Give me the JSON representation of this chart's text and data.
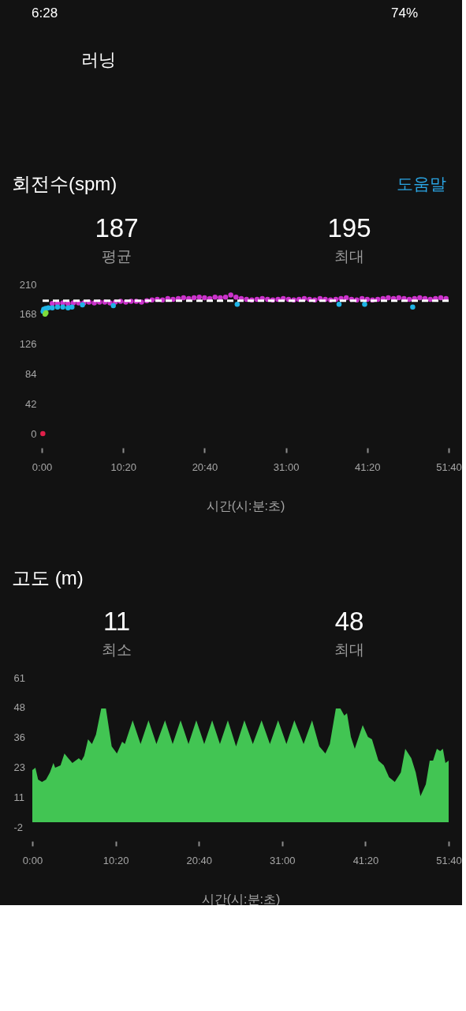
{
  "chart_data": [
    {
      "type": "scatter",
      "title": "회전수(spm)",
      "annotations": [
        "6:28",
        "74%",
        "러닝",
        "도움말",
        "187",
        "평균",
        "195",
        "최대"
      ],
      "xlabel": "시간(시:분:초)",
      "marker": "circle",
      "xlim": [
        0,
        3100
      ],
      "xticks": [
        {
          "value": 0,
          "label": "0:00"
        },
        {
          "value": 620,
          "label": "10:20"
        },
        {
          "value": 1240,
          "label": "20:40"
        },
        {
          "value": 1860,
          "label": "31:00"
        },
        {
          "value": 2480,
          "label": "41:20"
        },
        {
          "value": 3100,
          "label": "51:40"
        }
      ],
      "ylim": [
        0,
        210
      ],
      "yticks": [
        0,
        42,
        84,
        126,
        168,
        210
      ],
      "ref_lines": [
        {
          "axis": "y",
          "value": 187,
          "color": "#ffffff",
          "line_style": "dashed"
        }
      ],
      "series": [
        {
          "color": "#cc33cc",
          "x": [
            80,
            120,
            160,
            200,
            240,
            280,
            320,
            360,
            400,
            440,
            480,
            520,
            560,
            600,
            640,
            680,
            720,
            760,
            800,
            840,
            880,
            920,
            960,
            1000,
            1040,
            1080,
            1120,
            1160,
            1200,
            1240,
            1280,
            1320,
            1360,
            1400,
            1440,
            1480,
            1520,
            1560,
            1600,
            1640,
            1680,
            1720,
            1760,
            1800,
            1840,
            1880,
            1920,
            1960,
            2000,
            2040,
            2080,
            2120,
            2160,
            2200,
            2240,
            2280,
            2320,
            2360,
            2400,
            2440,
            2480,
            2520,
            2560,
            2600,
            2640,
            2680,
            2720,
            2760,
            2800,
            2840,
            2880,
            2920,
            2960,
            3000,
            3040,
            3080
          ],
          "values": [
            183,
            183,
            184,
            183,
            184,
            184,
            184,
            185,
            184,
            185,
            185,
            184,
            185,
            186,
            185,
            186,
            186,
            185,
            187,
            188,
            189,
            188,
            190,
            189,
            190,
            191,
            190,
            191,
            192,
            191,
            190,
            192,
            191,
            192,
            195,
            192,
            190,
            189,
            188,
            189,
            190,
            189,
            188,
            189,
            190,
            189,
            188,
            189,
            190,
            189,
            188,
            190,
            189,
            188,
            189,
            190,
            191,
            189,
            188,
            190,
            189,
            188,
            189,
            190,
            191,
            190,
            191,
            190,
            189,
            190,
            191,
            190,
            189,
            190,
            191,
            190
          ]
        },
        {
          "color": "#1fb4e6",
          "x": [
            10,
            15,
            30,
            50,
            80,
            120,
            160,
            200,
            230,
            310,
            545,
            1489,
            2265,
            2460,
            2826
          ],
          "values": [
            172,
            175,
            176,
            177,
            177,
            178,
            178,
            177,
            178,
            181,
            180,
            182,
            182,
            182,
            178
          ]
        },
        {
          "color": "#7fdc3c",
          "x": [
            25,
            32
          ],
          "values": [
            168,
            170
          ]
        },
        {
          "color": "#e0204a",
          "x": [
            8
          ],
          "values": [
            0
          ]
        }
      ]
    },
    {
      "type": "area",
      "title": "고도 (m)",
      "annotations": [
        "11",
        "최소",
        "48",
        "최대"
      ],
      "xlabel": "시간(시:분:초)",
      "xlim": [
        0,
        3100
      ],
      "xticks": [
        {
          "value": 0,
          "label": "0:00"
        },
        {
          "value": 620,
          "label": "10:20"
        },
        {
          "value": 1240,
          "label": "20:40"
        },
        {
          "value": 1860,
          "label": "31:00"
        },
        {
          "value": 2480,
          "label": "41:20"
        },
        {
          "value": 3100,
          "label": "51:40"
        }
      ],
      "ylim": [
        -2,
        61
      ],
      "yticks": [
        -2,
        {
          "value": 10.6,
          "label": "11"
        },
        {
          "value": 23.2,
          "label": "23"
        },
        {
          "value": 35.8,
          "label": "36"
        },
        {
          "value": 48.4,
          "label": "48"
        },
        61
      ],
      "x": [
        0,
        23,
        43,
        72,
        102,
        131,
        157,
        170,
        210,
        239,
        268,
        298,
        346,
        366,
        386,
        415,
        444,
        474,
        513,
        548,
        591,
        630,
        669,
        689,
        747,
        806,
        865,
        924,
        988,
        1045,
        1104,
        1163,
        1221,
        1280,
        1339,
        1397,
        1456,
        1517,
        1579,
        1642,
        1707,
        1769,
        1830,
        1892,
        1951,
        2020,
        2083,
        2137,
        2182,
        2215,
        2260,
        2294,
        2323,
        2343,
        2372,
        2401,
        2460,
        2499,
        2529,
        2577,
        2617,
        2656,
        2699,
        2744,
        2777,
        2822,
        2855,
        2890,
        2930,
        2959,
        2984,
        3012,
        3037,
        3057,
        3076,
        3100
      ],
      "series": [
        {
          "color": "#42c553",
          "values": [
            22,
            23,
            18,
            17,
            18,
            21,
            25,
            23,
            24,
            29,
            27,
            25,
            27,
            26,
            28,
            35,
            33,
            37,
            48,
            48,
            32,
            29,
            34,
            33,
            43,
            33,
            43,
            33,
            43,
            33,
            43,
            33,
            43,
            33,
            43,
            33,
            43,
            32,
            43,
            33,
            43,
            33,
            43,
            33,
            43,
            33,
            43,
            32,
            29,
            33,
            48,
            48,
            45,
            46,
            36,
            31,
            41,
            36,
            35,
            26,
            24,
            19,
            17,
            21,
            31,
            27,
            21,
            11,
            16,
            26,
            26,
            31,
            30,
            31,
            25,
            26
          ]
        }
      ]
    }
  ]
}
